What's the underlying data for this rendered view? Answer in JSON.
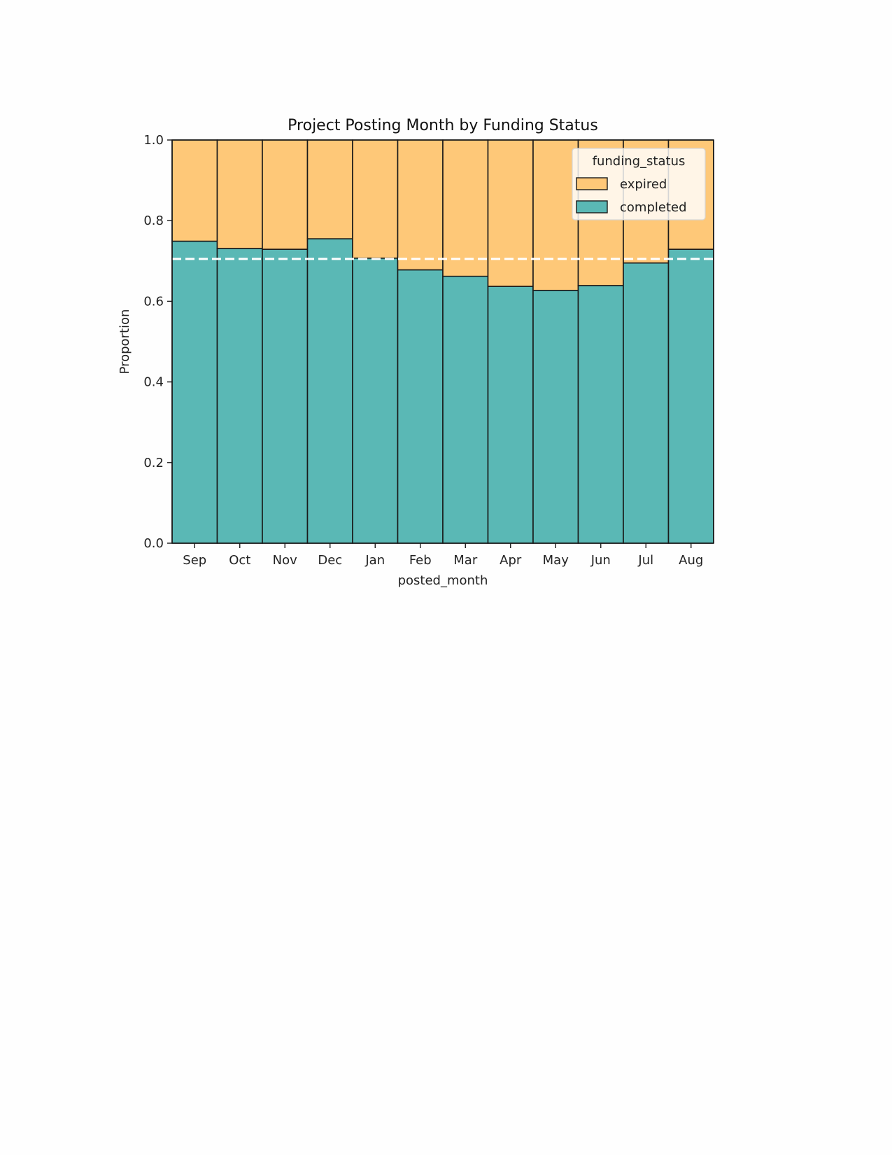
{
  "chart_data": {
    "type": "bar",
    "stacked": true,
    "normalized": true,
    "title": "Project Posting Month by Funding Status",
    "xlabel": "posted_month",
    "ylabel": "Proportion",
    "ylim": [
      0,
      1
    ],
    "yticks": [
      "0.0",
      "0.2",
      "0.4",
      "0.6",
      "0.8",
      "1.0"
    ],
    "categories": [
      "Sep",
      "Oct",
      "Nov",
      "Dec",
      "Jan",
      "Feb",
      "Mar",
      "Apr",
      "May",
      "Jun",
      "Jul",
      "Aug"
    ],
    "series": [
      {
        "name": "completed",
        "color": "#5ab8b5",
        "values": [
          0.749,
          0.731,
          0.729,
          0.755,
          0.707,
          0.678,
          0.662,
          0.637,
          0.627,
          0.639,
          0.695,
          0.729
        ]
      },
      {
        "name": "expired",
        "color": "#fec878",
        "values": [
          0.251,
          0.269,
          0.271,
          0.245,
          0.293,
          0.322,
          0.338,
          0.363,
          0.373,
          0.361,
          0.305,
          0.271
        ]
      }
    ],
    "reference_line": {
      "y": 0.705,
      "style": "dashed",
      "color": "#ffffff"
    },
    "grid": false,
    "legend": {
      "title": "funding_status",
      "placement": "top-right",
      "entries": [
        "expired",
        "completed"
      ]
    }
  }
}
